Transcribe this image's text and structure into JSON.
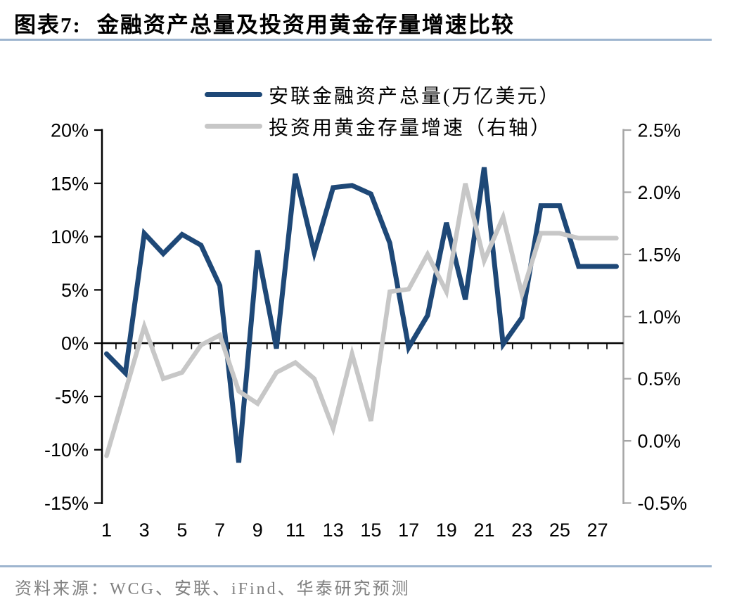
{
  "header": {
    "label": "图表7:",
    "title": "金融资产总量及投资用黄金存量增速比较"
  },
  "footer": {
    "source": "资料来源：WCG、安联、iFind、华泰研究预测"
  },
  "theme": {
    "rule_color": "#9EB5CF",
    "footer_text_color": "#808080",
    "left_axis_color": "#000000",
    "right_axis_color": "#A6A6A6"
  },
  "chart_data": {
    "type": "line",
    "x": [
      1,
      2,
      3,
      4,
      5,
      6,
      7,
      8,
      9,
      10,
      11,
      12,
      13,
      14,
      15,
      16,
      17,
      18,
      19,
      20,
      21,
      22,
      23,
      24,
      25,
      26,
      27,
      28
    ],
    "x_tick_labels": [
      "1",
      "3",
      "5",
      "7",
      "9",
      "11",
      "13",
      "15",
      "17",
      "19",
      "21",
      "23",
      "25",
      "27"
    ],
    "series": [
      {
        "name": "安联金融资产总量(万亿美元）",
        "axis": "left",
        "color": "#1E4877",
        "stroke_width": 7,
        "values": [
          -1.0,
          -2.8,
          10.3,
          8.4,
          10.2,
          9.2,
          5.4,
          -11.2,
          8.7,
          -0.5,
          15.9,
          8.5,
          14.6,
          14.8,
          14.0,
          9.4,
          -0.4,
          2.6,
          11.3,
          4.1,
          16.5,
          -0.1,
          2.4,
          12.9,
          12.9,
          7.2,
          7.2,
          7.2
        ]
      },
      {
        "name": "投资用黄金存量增速（右轴）",
        "axis": "right",
        "color": "#C7C7C7",
        "stroke_width": 6.5,
        "values": [
          -0.12,
          0.4,
          0.92,
          0.5,
          0.55,
          0.77,
          0.85,
          0.4,
          0.3,
          0.55,
          0.63,
          0.5,
          0.1,
          0.7,
          0.16,
          1.2,
          1.22,
          1.5,
          1.2,
          2.07,
          1.45,
          1.8,
          1.18,
          1.67,
          1.67,
          1.63,
          1.63,
          1.63
        ]
      }
    ],
    "left_axis": {
      "max": 20,
      "min": -15,
      "step": 5,
      "tick_labels": [
        "20%",
        "15%",
        "10%",
        "5%",
        "0%",
        "-5%",
        "-10%",
        "-15%"
      ]
    },
    "right_axis": {
      "max": 2.5,
      "min": -0.5,
      "step": 0.5,
      "tick_labels": [
        "2.5%",
        "2.0%",
        "1.5%",
        "1.0%",
        "0.5%",
        "0.0%",
        "-0.5%"
      ]
    },
    "baseline_left_value": 0,
    "grid": false,
    "legend_position": "top-center"
  }
}
